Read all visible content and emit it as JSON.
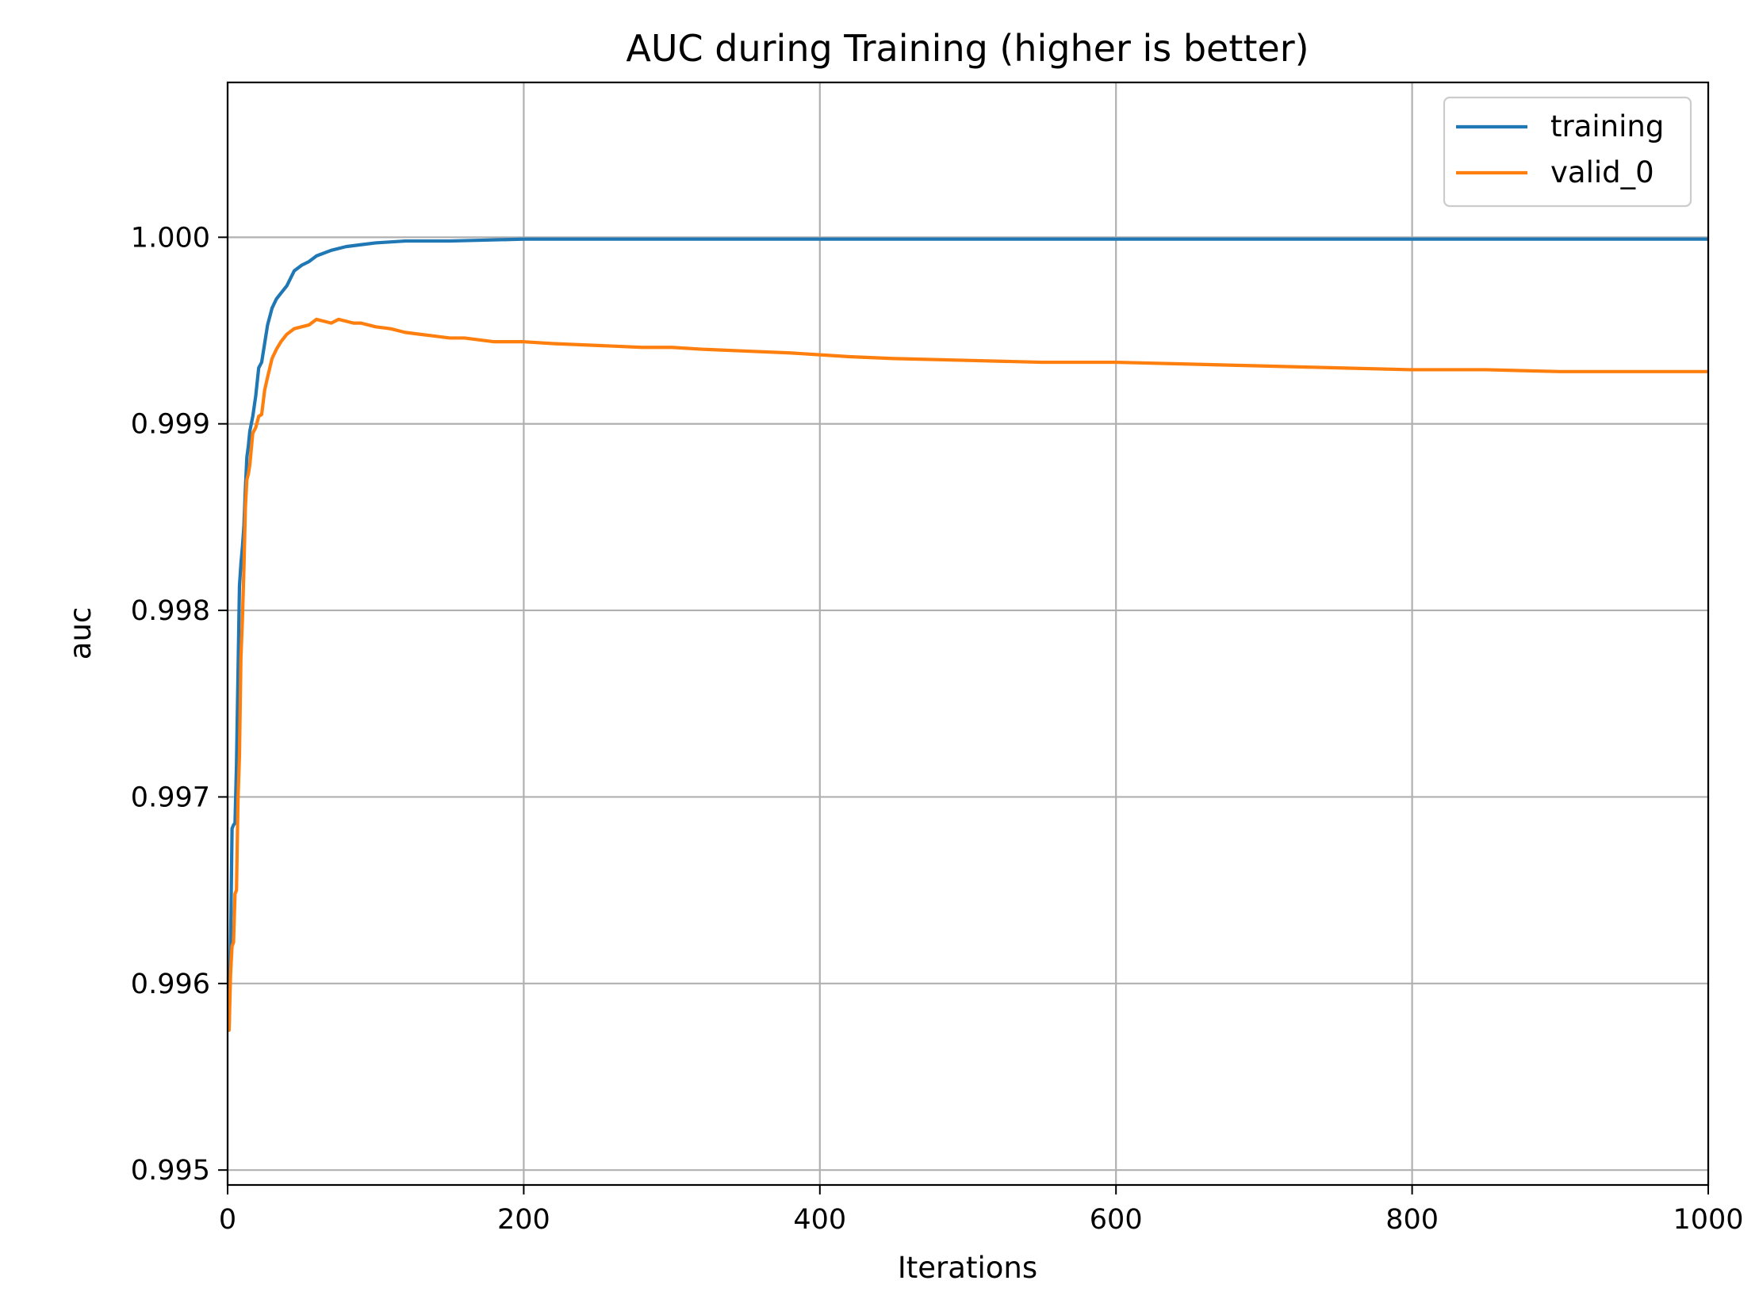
{
  "chart_data": {
    "type": "line",
    "title": "AUC during Training (higher is better)",
    "xlabel": "Iterations",
    "ylabel": "auc",
    "xlim": [
      0,
      1000
    ],
    "ylim": [
      0.99492,
      1.00083
    ],
    "xticks": [
      0,
      200,
      400,
      600,
      800,
      1000
    ],
    "xtick_labels": [
      "0",
      "200",
      "400",
      "600",
      "800",
      "1000"
    ],
    "yticks": [
      0.995,
      0.996,
      0.997,
      0.998,
      0.999,
      1.0
    ],
    "ytick_labels": [
      "0.995",
      "0.996",
      "0.997",
      "0.998",
      "0.999",
      "1.000"
    ],
    "grid": true,
    "legend_position": "top-right",
    "series": [
      {
        "name": "training",
        "color": "#1f77b4",
        "x": [
          1,
          2,
          3,
          4,
          5,
          6,
          7,
          8,
          9,
          10,
          11,
          12,
          13,
          14,
          15,
          17,
          19,
          21,
          23,
          25,
          27,
          30,
          33,
          36,
          40,
          45,
          50,
          55,
          60,
          70,
          80,
          90,
          100,
          120,
          150,
          200,
          300,
          400,
          500,
          600,
          700,
          800,
          900,
          1000
        ],
        "y": [
          0.99575,
          0.9962,
          0.99683,
          0.99685,
          0.99686,
          0.99717,
          0.99765,
          0.99813,
          0.99825,
          0.99834,
          0.99845,
          0.99865,
          0.99882,
          0.99888,
          0.99896,
          0.99904,
          0.99915,
          0.9993,
          0.99933,
          0.99943,
          0.99953,
          0.99962,
          0.99967,
          0.9997,
          0.99974,
          0.99982,
          0.99985,
          0.99987,
          0.9999,
          0.99993,
          0.99995,
          0.99996,
          0.99997,
          0.99998,
          0.99998,
          0.99999,
          0.99999,
          0.99999,
          0.99999,
          0.99999,
          0.99999,
          0.99999,
          0.99999,
          0.99999
        ]
      },
      {
        "name": "valid_0",
        "color": "#ff7f0e",
        "x": [
          1,
          2,
          3,
          4,
          5,
          6,
          7,
          8,
          9,
          10,
          11,
          12,
          13,
          14,
          15,
          17,
          19,
          21,
          23,
          25,
          27,
          30,
          33,
          36,
          40,
          45,
          50,
          55,
          60,
          65,
          70,
          75,
          80,
          85,
          90,
          95,
          100,
          110,
          120,
          130,
          140,
          150,
          160,
          180,
          200,
          220,
          250,
          280,
          300,
          320,
          350,
          380,
          400,
          420,
          450,
          500,
          550,
          600,
          650,
          700,
          750,
          800,
          850,
          900,
          950,
          1000
        ],
        "y": [
          0.99575,
          0.99605,
          0.9962,
          0.99622,
          0.99648,
          0.9965,
          0.99698,
          0.99722,
          0.99775,
          0.99795,
          0.99822,
          0.99855,
          0.9987,
          0.99873,
          0.99878,
          0.99895,
          0.99898,
          0.99904,
          0.99905,
          0.99918,
          0.99925,
          0.99935,
          0.9994,
          0.99944,
          0.99948,
          0.99951,
          0.99952,
          0.99953,
          0.99956,
          0.99955,
          0.99954,
          0.99956,
          0.99955,
          0.99954,
          0.99954,
          0.99953,
          0.99952,
          0.99951,
          0.99949,
          0.99948,
          0.99947,
          0.99946,
          0.99946,
          0.99944,
          0.99944,
          0.99943,
          0.99942,
          0.99941,
          0.99941,
          0.9994,
          0.99939,
          0.99938,
          0.99937,
          0.99936,
          0.99935,
          0.99934,
          0.99933,
          0.99933,
          0.99932,
          0.99931,
          0.9993,
          0.99929,
          0.99929,
          0.99928,
          0.99928,
          0.99928
        ]
      }
    ]
  }
}
